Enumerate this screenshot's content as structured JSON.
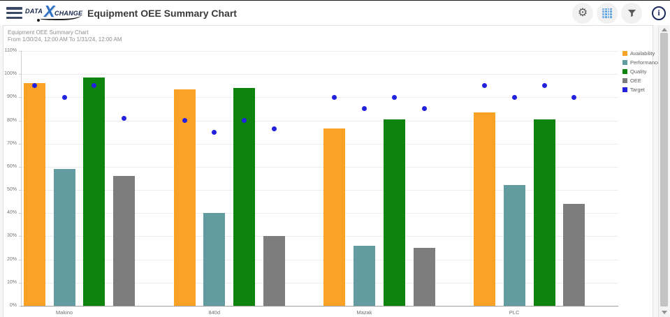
{
  "app_bar": {
    "logo": {
      "data": "DATA",
      "x": "X",
      "change": "CHANGE"
    },
    "title": "Equipment OEE Summary Chart",
    "icons": {
      "menu": "hamburger",
      "settings": "gear",
      "table_view": "grid",
      "filter": "funnel",
      "info": "i"
    }
  },
  "panel": {
    "title": "Equipment OEE Summary Chart",
    "subtitle": "From 1/30/24, 12:00 AM To 1/31/24, 12:00 AM"
  },
  "chart_data": {
    "type": "bar",
    "title": "Equipment OEE Summary Chart",
    "subtitle": "From 1/30/24, 12:00 AM To 1/31/24, 12:00 AM",
    "categories": [
      "Makino",
      "840d",
      "Mazak",
      "PLC"
    ],
    "series": [
      {
        "name": "Availability",
        "type": "bar",
        "color": "#faa226",
        "values": [
          96,
          93.5,
          76.5,
          83.5
        ]
      },
      {
        "name": "Performance",
        "type": "bar",
        "color": "#639ca0",
        "values": [
          59,
          40,
          26,
          52
        ]
      },
      {
        "name": "Quality",
        "type": "bar",
        "color": "#0e830e",
        "values": [
          98.5,
          94,
          80.5,
          80.5
        ]
      },
      {
        "name": "OEE",
        "type": "bar",
        "color": "#7d7d7d",
        "values": [
          56,
          30,
          25,
          44
        ]
      },
      {
        "name": "Target",
        "type": "point",
        "color": "#2121de",
        "values_per_category": [
          [
            95,
            90,
            95,
            81
          ],
          [
            80,
            75,
            80,
            76.5
          ],
          [
            90,
            85,
            90,
            85
          ],
          [
            95,
            90,
            95,
            90
          ]
        ]
      }
    ],
    "xlabel": "",
    "ylabel": "",
    "ylim": [
      0,
      110
    ],
    "ytick_step": 10,
    "ytick_labels": [
      "0%",
      "10%",
      "20%",
      "30%",
      "40%",
      "50%",
      "60%",
      "70%",
      "80%",
      "90%",
      "100%",
      "110%"
    ],
    "grid": true,
    "legend_position": "right",
    "legend": [
      "Availability",
      "Performance",
      "Quality",
      "OEE",
      "Target"
    ]
  }
}
